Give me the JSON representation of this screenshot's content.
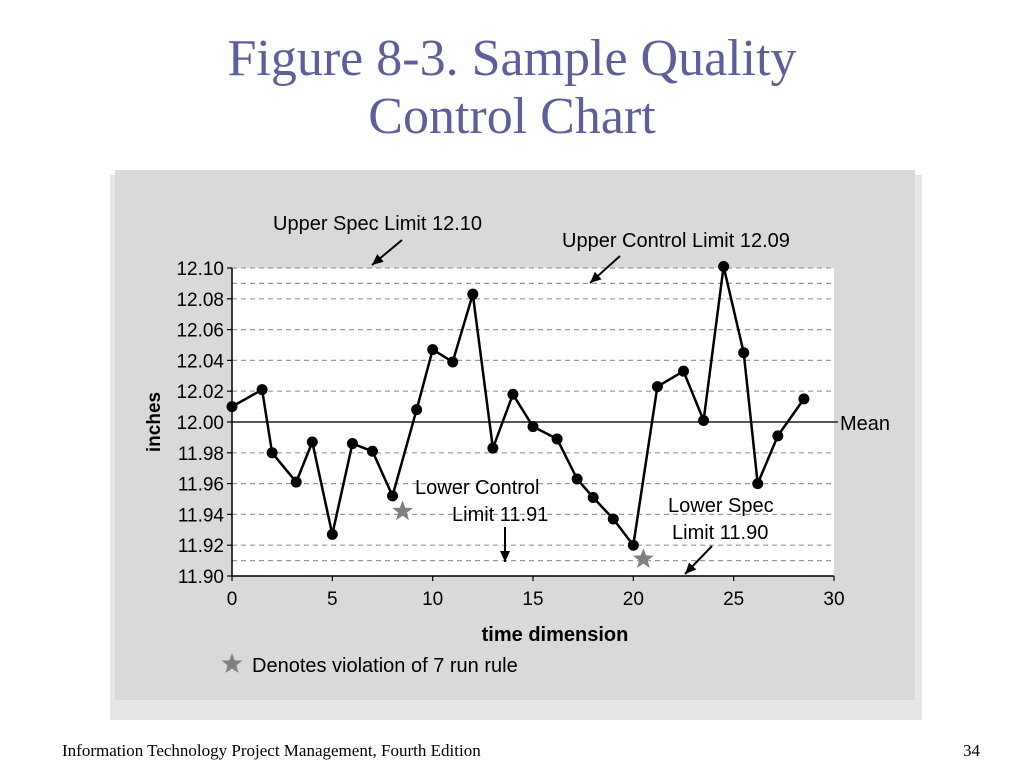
{
  "slide": {
    "title_line1": "Figure 8-3. Sample Quality",
    "title_line2": "Control Chart",
    "footer": "Information Technology Project Management, Fourth Edition",
    "page_number": "34",
    "title_color": "#5d5f9b"
  },
  "chart_data": {
    "type": "line",
    "xlabel": "time dimension",
    "ylabel": "inches",
    "xlim": [
      0,
      30
    ],
    "ylim": [
      11.9,
      12.1
    ],
    "x_ticks": [
      "0",
      "5",
      "10",
      "15",
      "20",
      "25",
      "30"
    ],
    "y_ticks": [
      "12.10",
      "12.08",
      "12.06",
      "12.04",
      "12.02",
      "12.00",
      "11.98",
      "11.96",
      "11.94",
      "11.92",
      "11.90"
    ],
    "grid": "dashed horizontal",
    "x": [
      0,
      1.5,
      2,
      3.2,
      4,
      5,
      6,
      7,
      8,
      9.2,
      10,
      11,
      12,
      13,
      14,
      15,
      16.2,
      17.2,
      18,
      19,
      20,
      21.2,
      22.5,
      23.5,
      24.5,
      25.5,
      26.2,
      27.2,
      28.5
    ],
    "y": [
      12.01,
      12.021,
      11.98,
      11.961,
      11.987,
      11.927,
      11.986,
      11.981,
      11.952,
      12.008,
      12.047,
      12.039,
      12.083,
      11.983,
      12.018,
      11.997,
      11.989,
      11.963,
      11.951,
      11.937,
      11.92,
      12.023,
      12.033,
      12.001,
      12.101,
      12.045,
      11.96,
      11.991,
      12.015
    ],
    "violations": [
      {
        "x": 8.5,
        "y": 11.942
      },
      {
        "x": 20.5,
        "y": 11.911
      }
    ],
    "reference_lines": [
      {
        "name": "Upper Spec Limit",
        "value": 12.1
      },
      {
        "name": "Upper Control Limit",
        "value": 12.09
      },
      {
        "name": "Mean",
        "value": 12.0
      },
      {
        "name": "Lower Control Limit",
        "value": 11.91
      },
      {
        "name": "Lower Spec Limit",
        "value": 11.9
      }
    ],
    "annotations": {
      "upper_spec": "Upper Spec Limit 12.10",
      "upper_control": "Upper Control Limit 12.09",
      "mean": "Mean",
      "lower_control_line1": "Lower Control",
      "lower_control_line2": "Limit 11.91",
      "lower_spec_line1": "Lower Spec",
      "lower_spec_line2": "Limit 11.90",
      "legend": "Denotes violation of 7 run rule"
    },
    "colors": {
      "line": "#000000",
      "star": "#808080",
      "grid": "#999999",
      "mean": "#555555"
    }
  }
}
